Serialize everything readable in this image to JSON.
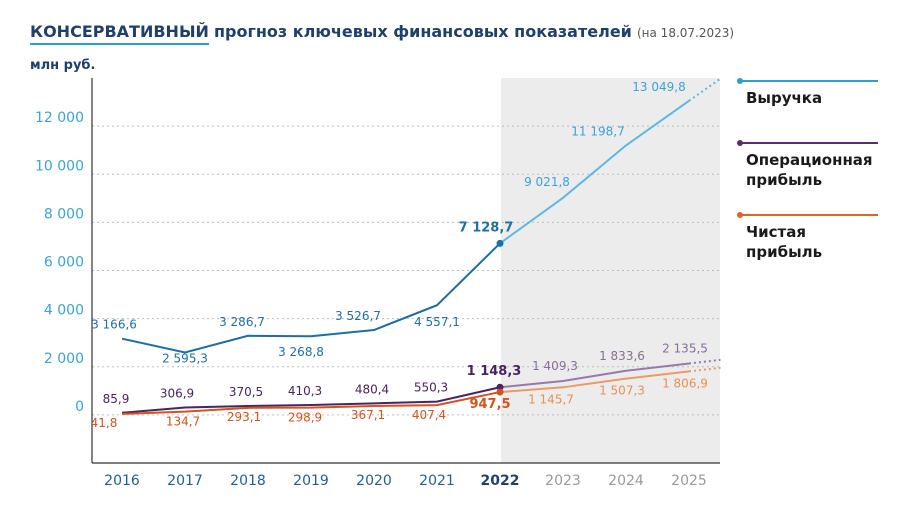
{
  "header": {
    "title_highlight": "КОНСЕРВАТИВНЫЙ",
    "title_rest": "прогноз ключевых финансовых показателей",
    "title_date": "(на 18.07.2023)",
    "unit": "млн руб."
  },
  "legend": [
    {
      "label": "Выручка",
      "color": "#2a9fd6"
    },
    {
      "label": "Операционная прибыль",
      "color": "#5b2d6e"
    },
    {
      "label": "Чистая прибыль",
      "color": "#e0661f"
    }
  ],
  "chart_data": {
    "type": "line",
    "categories": [
      "2016",
      "2017",
      "2018",
      "2019",
      "2020",
      "2021",
      "2022",
      "2023",
      "2024",
      "2025"
    ],
    "forecast_from_index": 7,
    "ylim": [
      -2000,
      14000
    ],
    "yticks": [
      0,
      2000,
      4000,
      6000,
      8000,
      10000,
      12000
    ],
    "ytick_labels": [
      "0",
      "2 000",
      "4 000",
      "6 000",
      "8 000",
      "10 000",
      "12 000"
    ],
    "series": [
      {
        "name": "Выручка",
        "color": "#1a6fa8",
        "forecast_color": "#5bb8e6",
        "values": [
          3166.6,
          2595.3,
          3286.7,
          3268.8,
          3526.7,
          4557.1,
          7128.7,
          9021.8,
          11198.7,
          13049.8
        ],
        "labels": [
          "3 166,6",
          "2 595,3",
          "3 286,7",
          "3 268,8",
          "3 526,7",
          "4 557,1",
          "7 128,7",
          "9 021,8",
          "11 198,7",
          "13 049,8"
        ]
      },
      {
        "name": "Операционная прибыль",
        "color": "#4a2363",
        "forecast_color": "#9a78ab",
        "values": [
          85.9,
          306.9,
          370.5,
          410.3,
          480.4,
          550.3,
          1148.3,
          1409.3,
          1833.6,
          2135.5
        ],
        "labels": [
          "85,9",
          "306,9",
          "370,5",
          "410,3",
          "480,4",
          "550,3",
          "1 148,3",
          "1 409,3",
          "1 833,6",
          "2 135,5"
        ]
      },
      {
        "name": "Чистая прибыль",
        "color": "#d4531a",
        "forecast_color": "#eb9a63",
        "values": [
          41.8,
          134.7,
          293.1,
          298.9,
          367.1,
          407.4,
          947.5,
          1145.7,
          1507.3,
          1806.9
        ],
        "labels": [
          "41,8",
          "134,7",
          "293,1",
          "298,9",
          "367,1",
          "407,4",
          "947,5",
          "1 145,7",
          "1 507,3",
          "1 806,9"
        ]
      }
    ]
  }
}
